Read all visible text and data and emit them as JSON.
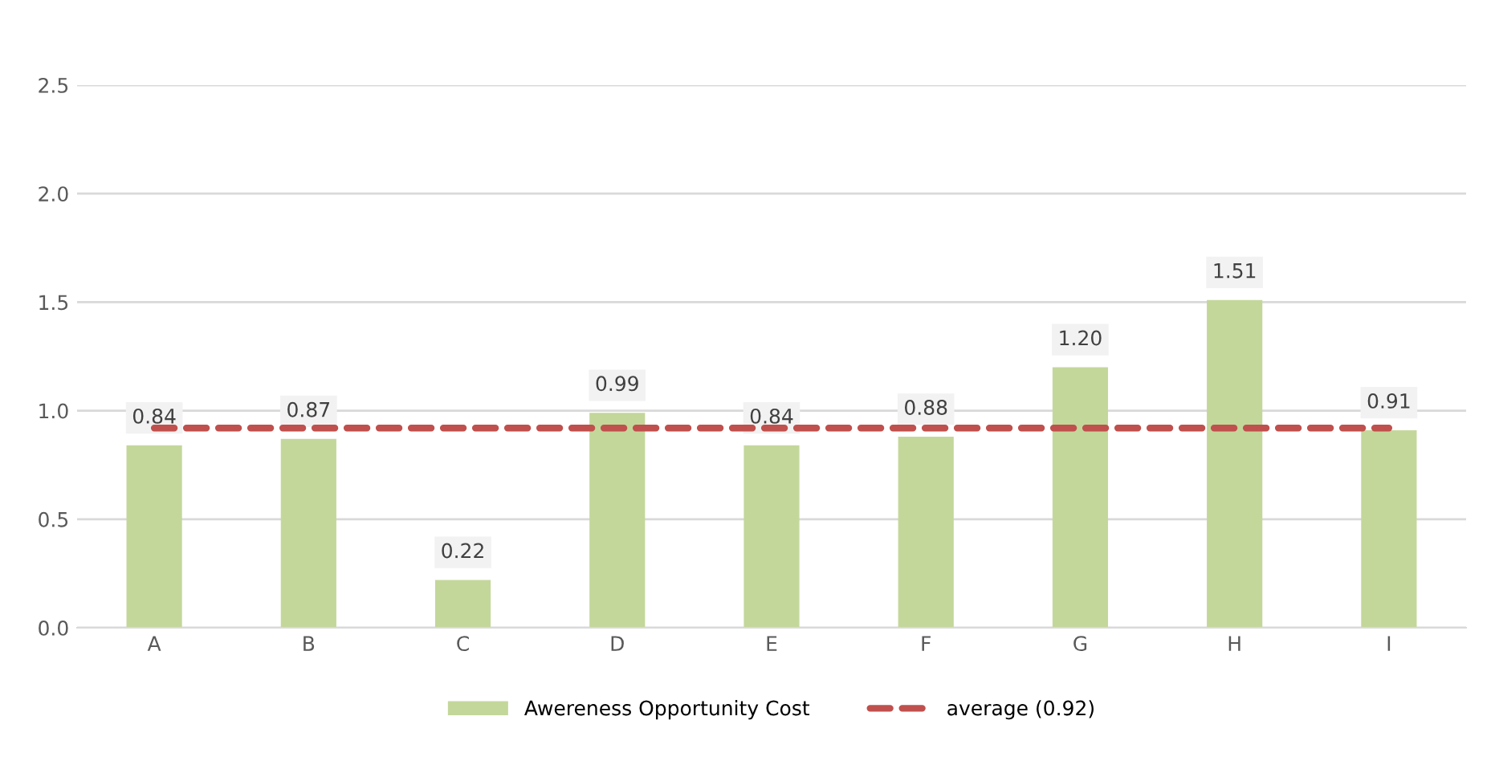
{
  "chart_data": {
    "type": "bar",
    "categories": [
      "A",
      "B",
      "C",
      "D",
      "E",
      "F",
      "G",
      "H",
      "I"
    ],
    "series": [
      {
        "name": "Awereness Opportunity Cost",
        "color": "#c4d79b",
        "values": [
          0.84,
          0.87,
          0.22,
          0.99,
          0.84,
          0.88,
          1.2,
          1.51,
          0.91
        ],
        "value_labels": [
          "0.84",
          "0.87",
          "0.22",
          "0.99",
          "0.84",
          "0.88",
          "1.20",
          "1.51",
          "0.91"
        ]
      },
      {
        "name": "average (0.92)",
        "type": "line",
        "color": "#c0504d",
        "line_style": "dashed",
        "values": [
          0.92,
          0.92,
          0.92,
          0.92,
          0.92,
          0.92,
          0.92,
          0.92,
          0.92
        ]
      }
    ],
    "ylim": [
      0,
      2.5
    ],
    "yticks": [
      "0.0",
      "0.5",
      "1.0",
      "1.5",
      "2.0",
      "2.5"
    ],
    "grid": "y",
    "legend": "bottom"
  }
}
